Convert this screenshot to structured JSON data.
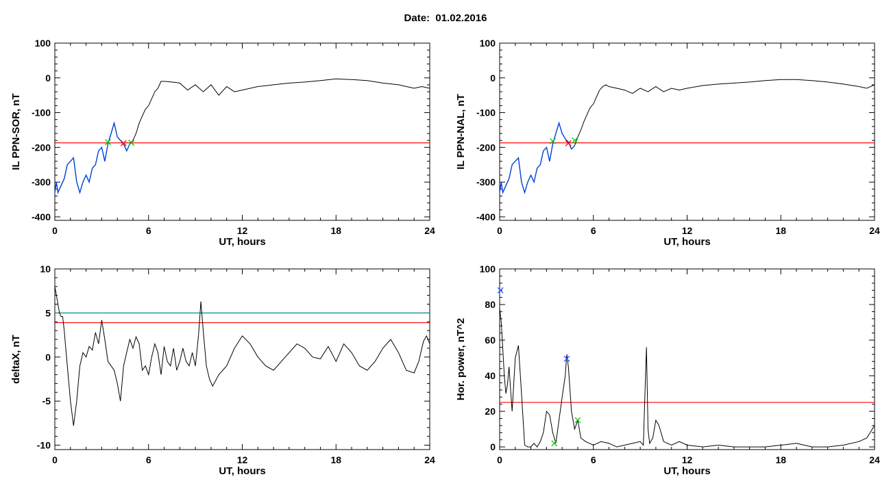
{
  "title": "Date:  01.02.2016",
  "colors": {
    "threshold": "#ff0000",
    "alt_threshold": "#008b8b",
    "trace": "#000000",
    "highlight": "#0047d8",
    "marker_green": "#00cc00",
    "marker_red": "#ff0000",
    "marker_blue": "#1f4fff"
  },
  "chart_data": [
    {
      "type": "line",
      "ylabel": "IL PPN-SOR, nT",
      "xlabel": "UT, hours",
      "xlim": [
        0,
        24
      ],
      "ylim": [
        -410,
        100
      ],
      "xticks": [
        0,
        6,
        12,
        18,
        24
      ],
      "yticks": [
        -400,
        -300,
        -200,
        -100,
        0,
        100
      ],
      "threshold": -187,
      "series": [
        {
          "x": [
            0,
            0.1,
            0.2,
            0.4,
            0.6,
            0.8,
            1.0,
            1.2,
            1.4,
            1.6,
            1.8,
            2.0,
            2.2,
            2.4,
            2.6,
            2.8,
            3.0,
            3.2,
            3.4,
            3.6,
            3.8,
            4.0,
            4.2,
            4.4,
            4.6,
            4.8,
            5.0,
            5.2,
            5.4,
            5.6,
            5.8,
            6.0,
            6.2,
            6.4,
            6.6,
            6.8,
            7.0,
            7.5,
            8.0,
            8.5,
            9.0,
            9.5,
            10.0,
            10.5,
            11.0,
            11.5,
            12.0,
            13,
            14,
            15,
            16,
            17,
            18,
            19,
            20,
            21,
            22,
            23,
            23.5,
            24
          ],
          "y": [
            -330,
            -300,
            -330,
            -310,
            -290,
            -250,
            -240,
            -230,
            -300,
            -330,
            -300,
            -280,
            -300,
            -260,
            -250,
            -210,
            -200,
            -240,
            -190,
            -160,
            -130,
            -170,
            -180,
            -190,
            -210,
            -190,
            -180,
            -160,
            -130,
            -110,
            -90,
            -80,
            -60,
            -40,
            -30,
            -10,
            -10,
            -12,
            -15,
            -35,
            -20,
            -40,
            -20,
            -50,
            -25,
            -40,
            -35,
            -25,
            -20,
            -15,
            -12,
            -8,
            -3,
            -5,
            -8,
            -15,
            -20,
            -30,
            -25,
            -30
          ]
        }
      ],
      "highlight_range": [
        0,
        4.9
      ],
      "markers": [
        {
          "symbol": "x",
          "color": "green",
          "x": 3.4,
          "y": -185
        },
        {
          "symbol": "x",
          "color": "red",
          "x": 4.4,
          "y": -188
        },
        {
          "symbol": "x",
          "color": "green",
          "x": 4.9,
          "y": -187
        }
      ]
    },
    {
      "type": "line",
      "ylabel": "IL PPN-NAL, nT",
      "xlabel": "UT, hours",
      "xlim": [
        0,
        24
      ],
      "ylim": [
        -410,
        100
      ],
      "xticks": [
        0,
        6,
        12,
        18,
        24
      ],
      "yticks": [
        -400,
        -300,
        -200,
        -100,
        0,
        100
      ],
      "threshold": -187,
      "series": [
        {
          "x": [
            0,
            0.1,
            0.2,
            0.4,
            0.6,
            0.8,
            1.0,
            1.2,
            1.4,
            1.6,
            1.8,
            2.0,
            2.2,
            2.4,
            2.6,
            2.8,
            3.0,
            3.2,
            3.4,
            3.6,
            3.8,
            4.0,
            4.2,
            4.4,
            4.6,
            4.8,
            5.0,
            5.2,
            5.4,
            5.6,
            5.8,
            6.0,
            6.2,
            6.4,
            6.6,
            6.8,
            7.0,
            7.5,
            8.0,
            8.5,
            9.0,
            9.5,
            10.0,
            10.5,
            11.0,
            11.5,
            12.0,
            13,
            14,
            15,
            16,
            17,
            18,
            19,
            20,
            21,
            22,
            23,
            23.5,
            24
          ],
          "y": [
            -330,
            -300,
            -330,
            -310,
            -290,
            -250,
            -240,
            -230,
            -300,
            -330,
            -300,
            -280,
            -300,
            -260,
            -250,
            -210,
            -200,
            -240,
            -190,
            -160,
            -130,
            -160,
            -175,
            -185,
            -205,
            -195,
            -170,
            -150,
            -125,
            -105,
            -85,
            -75,
            -55,
            -35,
            -25,
            -20,
            -25,
            -30,
            -35,
            -45,
            -30,
            -40,
            -25,
            -40,
            -30,
            -35,
            -30,
            -22,
            -18,
            -15,
            -12,
            -8,
            -5,
            -5,
            -8,
            -12,
            -18,
            -25,
            -30,
            -20
          ]
        }
      ],
      "highlight_range": [
        0,
        4.8
      ],
      "markers": [
        {
          "symbol": "x",
          "color": "green",
          "x": 3.4,
          "y": -182
        },
        {
          "symbol": "x",
          "color": "red",
          "x": 4.4,
          "y": -188
        },
        {
          "symbol": "x",
          "color": "green",
          "x": 4.8,
          "y": -180
        }
      ]
    },
    {
      "type": "line",
      "ylabel": "deltaX, nT",
      "xlabel": "UT, hours",
      "xlim": [
        0,
        24
      ],
      "ylim": [
        -10.5,
        10
      ],
      "xticks": [
        0,
        6,
        12,
        18,
        24
      ],
      "yticks": [
        -10,
        -5,
        0,
        5,
        10
      ],
      "threshold": 3.9,
      "threshold2": 5.0,
      "series": [
        {
          "x": [
            0,
            0.1,
            0.3,
            0.4,
            0.5,
            0.6,
            0.8,
            1.0,
            1.2,
            1.4,
            1.6,
            1.8,
            2.0,
            2.2,
            2.4,
            2.6,
            2.8,
            3.0,
            3.2,
            3.4,
            3.6,
            3.8,
            4.0,
            4.2,
            4.4,
            4.6,
            4.8,
            5.0,
            5.2,
            5.4,
            5.6,
            5.8,
            6.0,
            6.2,
            6.4,
            6.6,
            6.8,
            7.0,
            7.2,
            7.4,
            7.6,
            7.8,
            8.0,
            8.2,
            8.4,
            8.6,
            8.8,
            9.0,
            9.2,
            9.35,
            9.5,
            9.7,
            9.9,
            10.1,
            10.5,
            11.0,
            11.5,
            12.0,
            12.5,
            13.0,
            13.5,
            14.0,
            14.5,
            15.0,
            15.5,
            16.0,
            16.5,
            17.0,
            17.5,
            18.0,
            18.5,
            19.0,
            19.5,
            20.0,
            20.5,
            21.0,
            21.5,
            22.0,
            22.5,
            23.0,
            23.3,
            23.6,
            23.8,
            24
          ],
          "y": [
            8.0,
            7.0,
            5.0,
            4.6,
            4.6,
            3.0,
            -1.0,
            -5.0,
            -7.8,
            -5.0,
            -1.0,
            0.5,
            0.0,
            1.2,
            0.8,
            2.8,
            1.5,
            4.2,
            2.0,
            -0.5,
            -1.0,
            -1.5,
            -3.0,
            -5.0,
            -1.0,
            0.5,
            2.0,
            1.0,
            2.3,
            1.5,
            -1.5,
            -1.0,
            -2.0,
            0.0,
            1.5,
            0.5,
            -2.0,
            1.2,
            -0.5,
            -1.0,
            1.0,
            -1.5,
            -0.5,
            1.0,
            -0.5,
            -1.0,
            0.5,
            -1.0,
            2.5,
            6.3,
            3.0,
            -1.0,
            -2.5,
            -3.3,
            -2.0,
            -1.0,
            1.0,
            2.4,
            1.5,
            0.0,
            -1.0,
            -1.5,
            -0.5,
            0.5,
            1.5,
            1.0,
            0.0,
            -0.2,
            1.2,
            -0.5,
            1.5,
            0.5,
            -1.0,
            -1.5,
            -0.5,
            1.0,
            2.0,
            0.5,
            -1.5,
            -1.8,
            -0.5,
            1.8,
            2.4,
            1.5
          ]
        }
      ]
    },
    {
      "type": "line",
      "ylabel": "Hor. power, nT^2",
      "xlabel": "UT, hours",
      "xlim": [
        0,
        24
      ],
      "ylim": [
        -1.5,
        100
      ],
      "xticks": [
        0,
        6,
        12,
        18,
        24
      ],
      "yticks": [
        0,
        20,
        40,
        60,
        80,
        100
      ],
      "threshold": 25,
      "series": [
        {
          "x": [
            0,
            0.1,
            0.2,
            0.3,
            0.4,
            0.5,
            0.6,
            0.8,
            1.0,
            1.2,
            1.4,
            1.6,
            1.8,
            2.0,
            2.2,
            2.4,
            2.6,
            2.8,
            3.0,
            3.2,
            3.4,
            3.6,
            3.8,
            4.0,
            4.2,
            4.3,
            4.4,
            4.6,
            4.8,
            5.0,
            5.2,
            5.5,
            6.0,
            6.5,
            7.0,
            7.5,
            8.0,
            8.5,
            9.0,
            9.2,
            9.3,
            9.4,
            9.5,
            9.6,
            9.8,
            10.0,
            10.2,
            10.5,
            11.0,
            11.5,
            12,
            13,
            14,
            15,
            16,
            17,
            18,
            19,
            20,
            21,
            22,
            23,
            23.5,
            24
          ],
          "y": [
            78,
            70,
            55,
            40,
            30,
            35,
            45,
            20,
            50,
            57,
            30,
            1,
            0,
            0,
            2,
            0,
            3,
            8,
            20,
            18,
            8,
            2,
            15,
            28,
            40,
            52,
            45,
            20,
            10,
            15,
            5,
            3,
            1,
            3,
            2,
            0,
            1,
            2,
            3,
            1,
            30,
            56,
            10,
            2,
            5,
            15,
            12,
            3,
            1,
            3,
            1,
            0,
            1,
            0,
            0,
            0,
            1,
            2,
            0,
            0,
            1,
            3,
            5,
            12
          ]
        }
      ],
      "markers": [
        {
          "symbol": "x",
          "color": "blue",
          "x": 0.05,
          "y": 88
        },
        {
          "symbol": "x",
          "color": "green",
          "x": 3.5,
          "y": 2
        },
        {
          "symbol": "x",
          "color": "blue",
          "x": 4.3,
          "y": 49.5
        },
        {
          "symbol": "x",
          "color": "green",
          "x": 5.0,
          "y": 15
        }
      ]
    }
  ]
}
